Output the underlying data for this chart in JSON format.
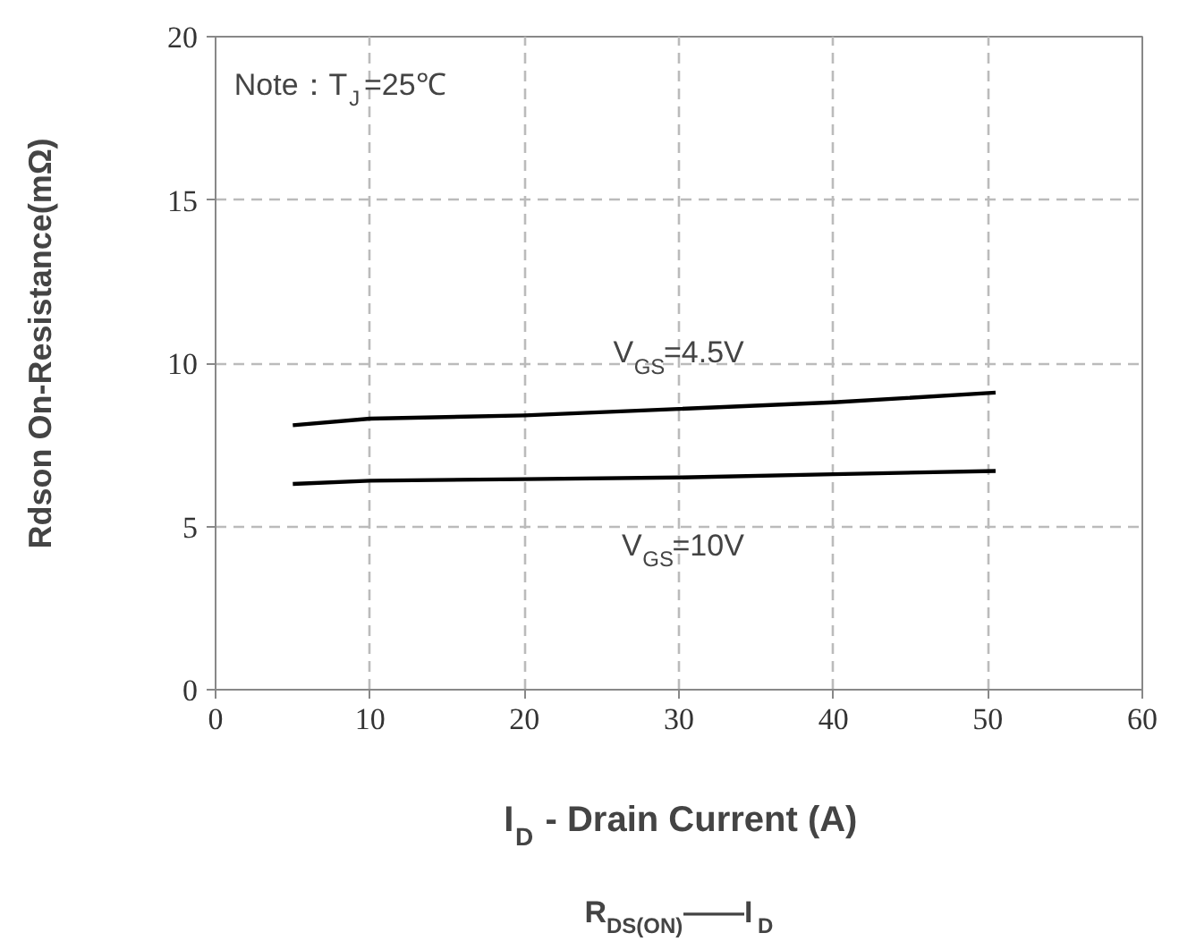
{
  "chart_data": {
    "type": "line",
    "title": "R$_{DS(ON)}$——I$_{D}$",
    "xlabel": "I$_{D}$ - Drain Current (A)",
    "ylabel": "Rdson On-Resistance(mΩ)",
    "annotations": [
      "Note：T$_{J}$=25℃"
    ],
    "xlim": [
      0,
      60
    ],
    "ylim": [
      0,
      20
    ],
    "xticks": [
      0,
      10,
      20,
      30,
      40,
      50,
      60
    ],
    "yticks": [
      0,
      5,
      10,
      15,
      20
    ],
    "grid": true,
    "series": [
      {
        "name": "V$_{GS}$=4.5V",
        "color": "#000000",
        "x": [
          5,
          10,
          20,
          30,
          40,
          50.5
        ],
        "values": [
          8.1,
          8.3,
          8.4,
          8.6,
          8.8,
          9.1
        ]
      },
      {
        "name": "V$_{GS}$=10V",
        "color": "#000000",
        "x": [
          5,
          10,
          20,
          30,
          40,
          50.5
        ],
        "values": [
          6.3,
          6.4,
          6.45,
          6.5,
          6.6,
          6.7
        ]
      }
    ]
  }
}
